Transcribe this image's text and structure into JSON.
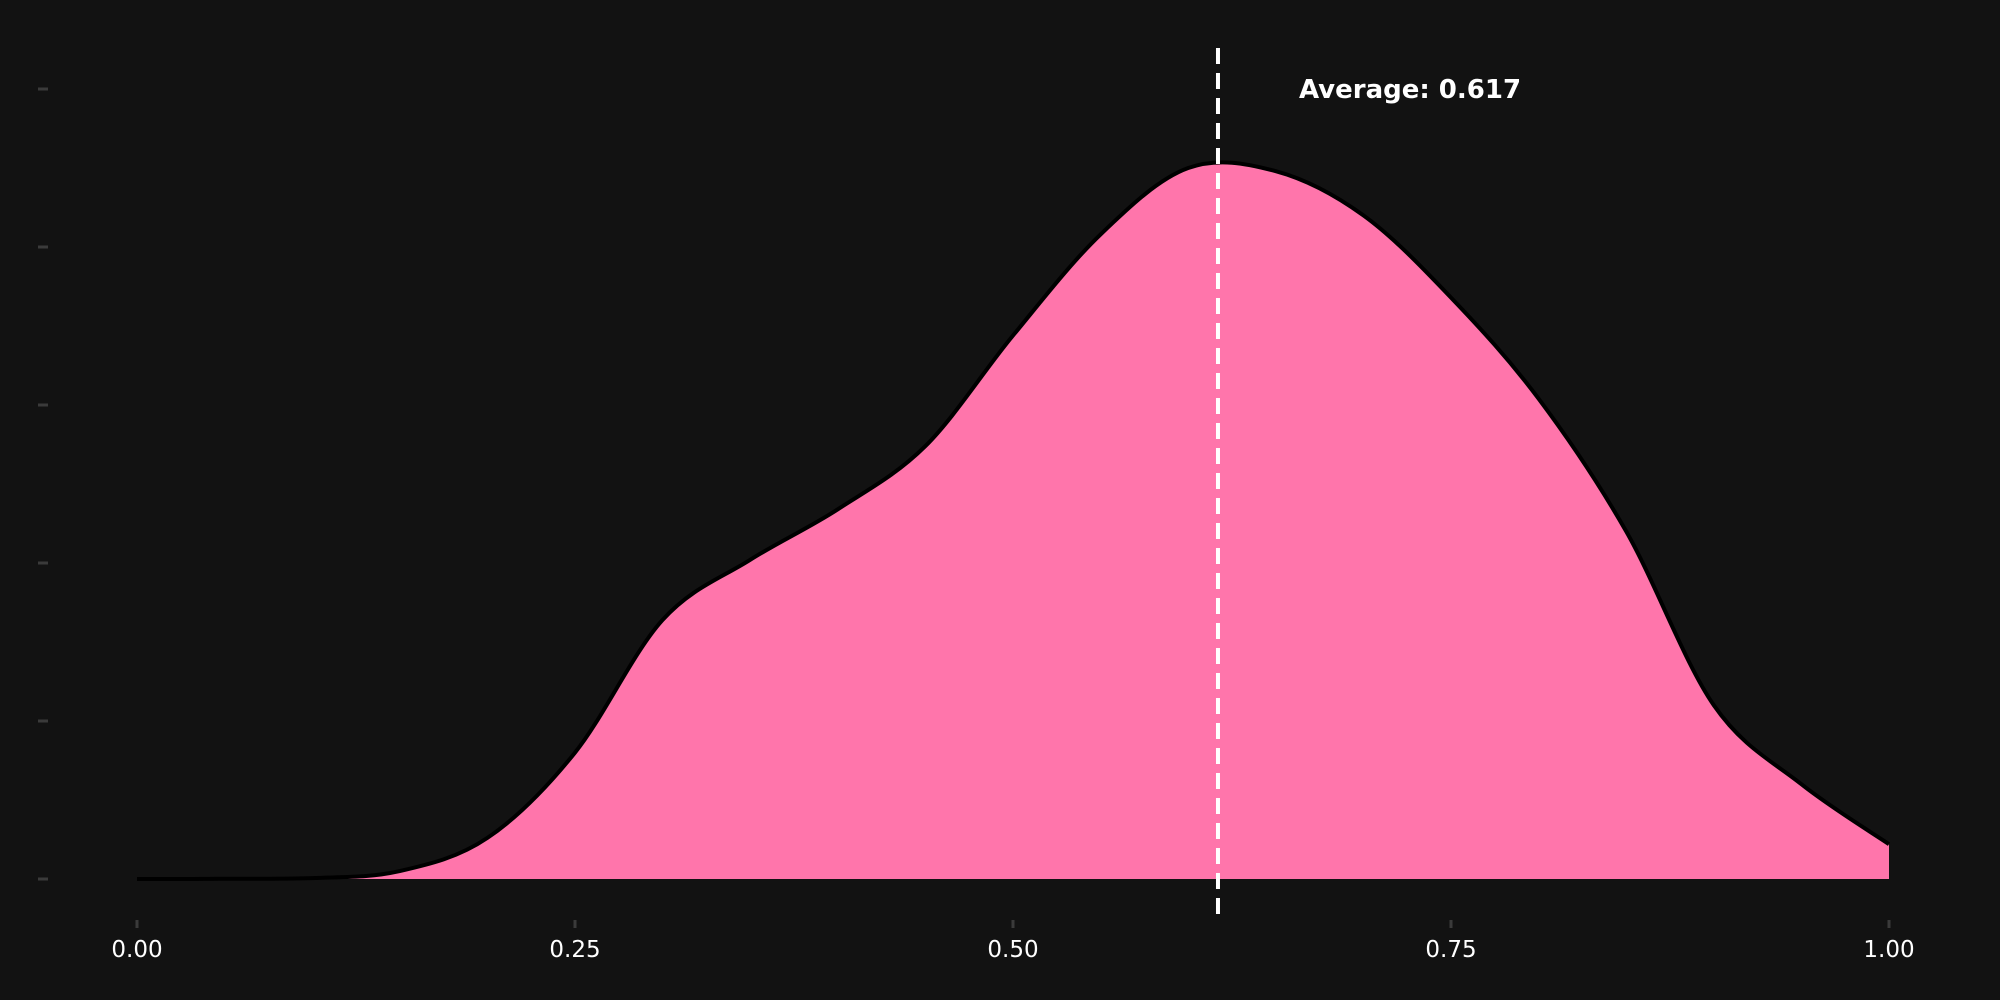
{
  "chart_data": {
    "type": "area",
    "title": "",
    "xlabel": "",
    "ylabel": "",
    "xlim": [
      0.0,
      1.0
    ],
    "ylim": [
      0.0,
      2.4
    ],
    "grid": false,
    "x_ticks": [
      0.0,
      0.25,
      0.5,
      0.75,
      1.0
    ],
    "x_tick_labels": [
      "0.00",
      "0.25",
      "0.50",
      "0.75",
      "1.00"
    ],
    "y_ticks": [
      0.0,
      0.5,
      1.0,
      1.5,
      2.0,
      2.5
    ],
    "y_tick_labels_visible": false,
    "series": [
      {
        "x": [
          0.0,
          0.05,
          0.1,
          0.15,
          0.2,
          0.25,
          0.3,
          0.35,
          0.4,
          0.45,
          0.5,
          0.55,
          0.6,
          0.65,
          0.7,
          0.75,
          0.8,
          0.85,
          0.9,
          0.95,
          1.0
        ],
        "y": [
          0.0,
          0.0005,
          0.003,
          0.025,
          0.13,
          0.4,
          0.82,
          1.01,
          1.17,
          1.37,
          1.72,
          2.04,
          2.25,
          2.24,
          2.1,
          1.84,
          1.52,
          1.1,
          0.55,
          0.3,
          0.11
        ]
      }
    ],
    "fill_color": "#FF75AB",
    "outline_color": "#000000",
    "annotations": [
      {
        "type": "vertical-line",
        "x": 0.617,
        "style": "dashed",
        "color": "#ffffff",
        "label": "Average: 0.617"
      }
    ]
  },
  "colors": {
    "background": "#121212",
    "tick_mark": "#3a3a3a",
    "text": "#ffffff"
  }
}
